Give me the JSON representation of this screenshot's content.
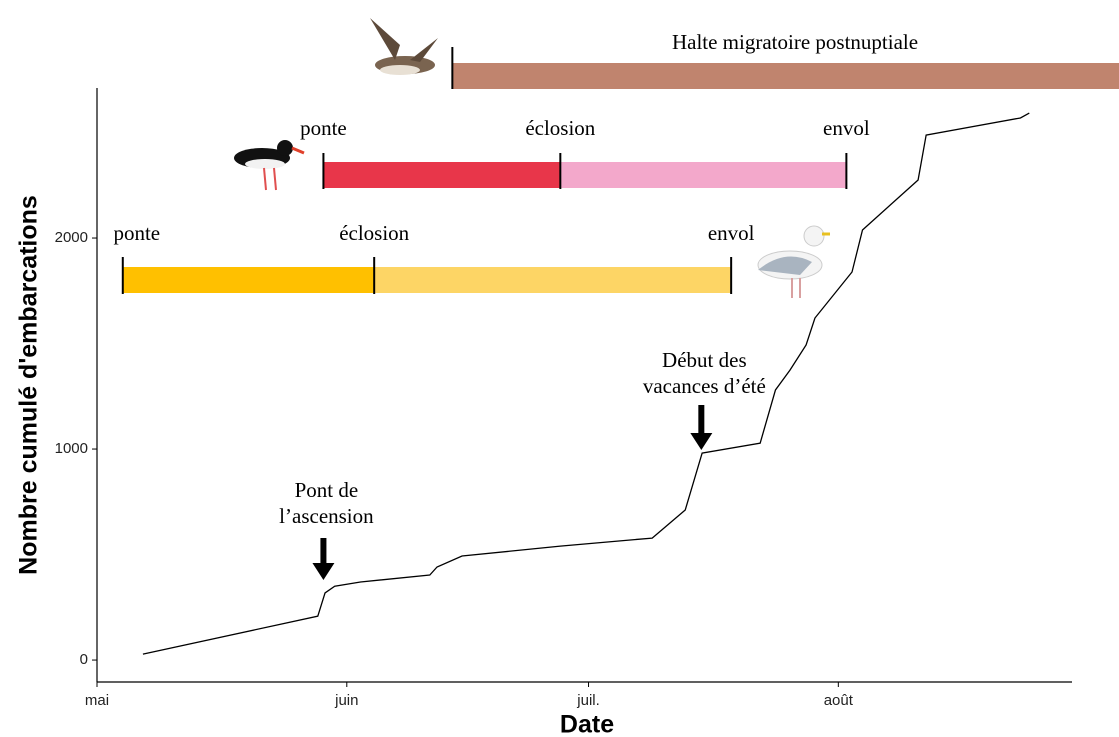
{
  "chart_data": {
    "type": "line",
    "x_label": "Date",
    "y_label": "Nombre cumulé d'embarcations",
    "x": [
      5.7,
      27.4,
      28.3,
      29.5,
      32.7,
      41.3,
      42.2,
      45.3,
      57.5,
      68.9,
      73.0,
      75.1,
      82.3,
      84.2,
      86.0,
      88.0,
      89.1,
      93.7,
      95.0,
      101.9,
      102.9,
      114.6,
      115.7
    ],
    "values": [
      28,
      208,
      318,
      350,
      370,
      403,
      441,
      493,
      540,
      578,
      711,
      981,
      1028,
      1280,
      1374,
      1493,
      1621,
      1839,
      2038,
      2275,
      2488,
      2569,
      2592
    ],
    "color": "#000000",
    "xlim": [
      0,
      121
    ],
    "ylim": [
      -104,
      2711
    ],
    "xticks": [
      {
        "value": 0,
        "label": "mai"
      },
      {
        "value": 31,
        "label": "juin"
      },
      {
        "value": 61,
        "label": "juil."
      },
      {
        "value": 92,
        "label": "août"
      }
    ],
    "yticks": [
      0,
      1000,
      2000
    ],
    "grid": false,
    "halte": {
      "label": "Halte migratoire postnuptiale",
      "start": 44.1,
      "end": 126.9,
      "color": "#c0846e"
    },
    "phenology": [
      {
        "markers": [
          {
            "label": "ponte",
            "x": 28.1
          },
          {
            "label": "éclosion",
            "x": 57.5
          },
          {
            "label": "envol",
            "x": 93.0
          }
        ],
        "colors": [
          "#e8364a",
          "#f3a8cb"
        ]
      },
      {
        "markers": [
          {
            "label": "ponte",
            "x": 3.2
          },
          {
            "label": "éclosion",
            "x": 34.4
          },
          {
            "label": "envol",
            "x": 78.7
          }
        ],
        "colors": [
          "#ffc000",
          "#fdd565"
        ]
      }
    ],
    "annotations": [
      {
        "lines": [
          "Pont de",
          "l’ascension"
        ],
        "x": 28.1
      },
      {
        "lines": [
          "Début des",
          "vacances d’été"
        ],
        "x": 75.0
      }
    ]
  }
}
